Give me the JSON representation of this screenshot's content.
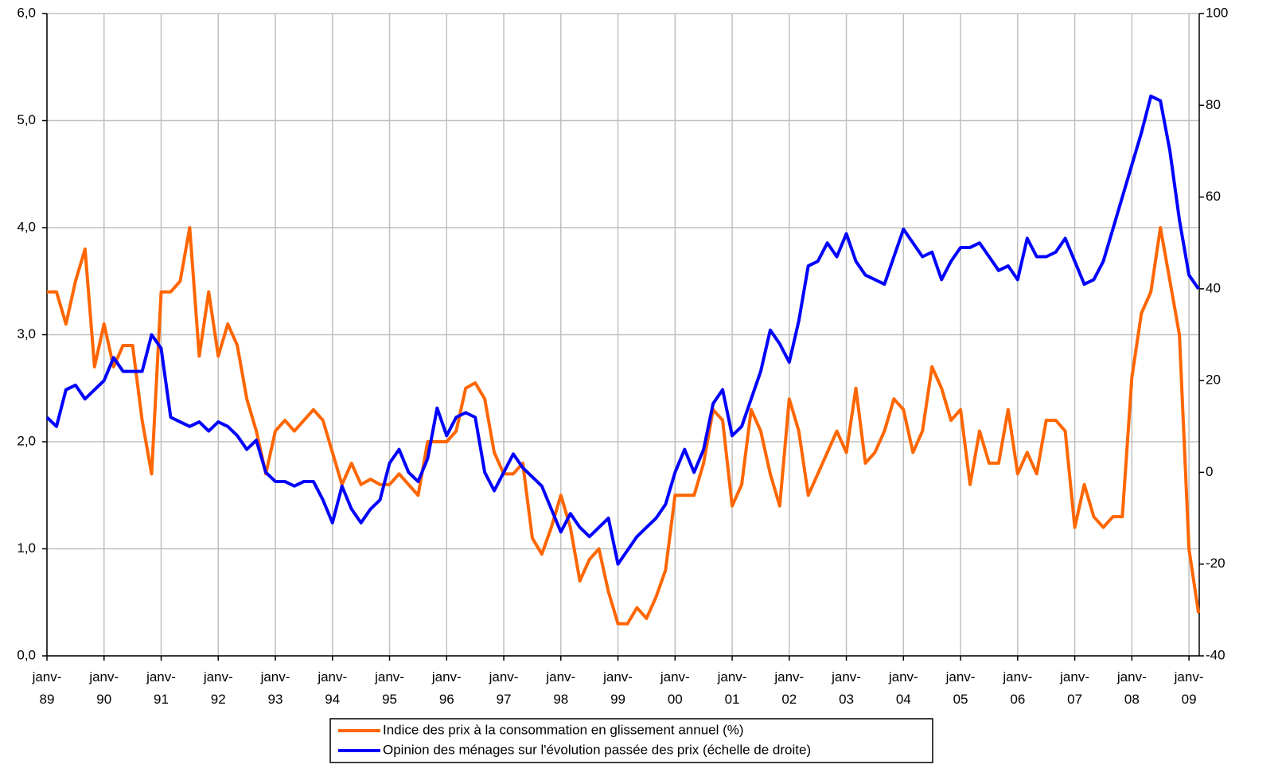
{
  "chart_data": {
    "type": "line",
    "x": [
      1989,
      1989.167,
      1989.333,
      1989.5,
      1989.667,
      1989.833,
      1990,
      1990.167,
      1990.333,
      1990.5,
      1990.667,
      1990.833,
      1991,
      1991.167,
      1991.333,
      1991.5,
      1991.667,
      1991.833,
      1992,
      1992.167,
      1992.333,
      1992.5,
      1992.667,
      1992.833,
      1993,
      1993.167,
      1993.333,
      1993.5,
      1993.667,
      1993.833,
      1994,
      1994.167,
      1994.333,
      1994.5,
      1994.667,
      1994.833,
      1995,
      1995.167,
      1995.333,
      1995.5,
      1995.667,
      1995.833,
      1996,
      1996.167,
      1996.333,
      1996.5,
      1996.667,
      1996.833,
      1997,
      1997.167,
      1997.333,
      1997.5,
      1997.667,
      1997.833,
      1998,
      1998.167,
      1998.333,
      1998.5,
      1998.667,
      1998.833,
      1999,
      1999.167,
      1999.333,
      1999.5,
      1999.667,
      1999.833,
      2000,
      2000.167,
      2000.333,
      2000.5,
      2000.667,
      2000.833,
      2001,
      2001.167,
      2001.333,
      2001.5,
      2001.667,
      2001.833,
      2002,
      2002.167,
      2002.333,
      2002.5,
      2002.667,
      2002.833,
      2003,
      2003.167,
      2003.333,
      2003.5,
      2003.667,
      2003.833,
      2004,
      2004.167,
      2004.333,
      2004.5,
      2004.667,
      2004.833,
      2005,
      2005.167,
      2005.333,
      2005.5,
      2005.667,
      2005.833,
      2006,
      2006.167,
      2006.333,
      2006.5,
      2006.667,
      2006.833,
      2007,
      2007.167,
      2007.333,
      2007.5,
      2007.667,
      2007.833,
      2008,
      2008.167,
      2008.333,
      2008.5,
      2008.667,
      2008.833,
      2009,
      2009.167
    ],
    "series": [
      {
        "name": "Indice des prix à la consommation en glissement annuel (%)",
        "color": "#ff6600",
        "axis": "y",
        "values": [
          3.4,
          3.4,
          3.1,
          3.5,
          3.8,
          2.7,
          3.1,
          2.7,
          2.9,
          2.9,
          2.2,
          1.7,
          3.4,
          3.4,
          3.5,
          4.0,
          2.8,
          3.4,
          2.8,
          3.1,
          2.9,
          2.4,
          2.1,
          1.7,
          2.1,
          2.2,
          2.1,
          2.2,
          2.3,
          2.2,
          1.9,
          1.6,
          1.8,
          1.6,
          1.65,
          1.6,
          1.6,
          1.7,
          1.6,
          1.5,
          2.0,
          2.0,
          2.0,
          2.1,
          2.5,
          2.55,
          2.4,
          1.9,
          1.7,
          1.7,
          1.8,
          1.1,
          0.95,
          1.2,
          1.5,
          1.2,
          0.7,
          0.9,
          1.0,
          0.6,
          0.3,
          0.3,
          0.45,
          0.35,
          0.55,
          0.8,
          1.5,
          1.5,
          1.5,
          1.8,
          2.3,
          2.2,
          1.4,
          1.6,
          2.3,
          2.1,
          1.7,
          1.4,
          2.4,
          2.1,
          1.5,
          1.7,
          1.9,
          2.1,
          1.9,
          2.5,
          1.8,
          1.9,
          2.1,
          2.4,
          2.3,
          1.9,
          2.1,
          2.7,
          2.5,
          2.2,
          2.3,
          1.6,
          2.1,
          1.8,
          1.8,
          2.3,
          1.7,
          1.9,
          1.7,
          2.2,
          2.2,
          2.1,
          1.2,
          1.6,
          1.3,
          1.2,
          1.3,
          1.3,
          2.6,
          3.2,
          3.4,
          4.0,
          3.5,
          3.0,
          1.0,
          0.4
        ]
      },
      {
        "name": "Opinion des ménages sur l'évolution passée des prix (échelle de droite)",
        "color": "#0000ff",
        "axis": "y2",
        "values": [
          12,
          10,
          18,
          19,
          16,
          18,
          20,
          25,
          22,
          22,
          22,
          30,
          27,
          12,
          11,
          10,
          11,
          9,
          11,
          10,
          8,
          5,
          7,
          0,
          -2,
          -2,
          -3,
          -2,
          -2,
          -6,
          -11,
          -3,
          -8,
          -11,
          -8,
          -6,
          2,
          5,
          0,
          -2,
          3,
          14,
          8,
          12,
          13,
          12,
          0,
          -4,
          0,
          4,
          1,
          -1,
          -3,
          -8,
          -13,
          -9,
          -12,
          -14,
          -12,
          -10,
          -20,
          -17,
          -14,
          -12,
          -10,
          -7,
          0,
          5,
          0,
          5,
          15,
          18,
          8,
          10,
          16,
          22,
          31,
          28,
          24,
          33,
          45,
          46,
          50,
          47,
          52,
          46,
          43,
          42,
          41,
          47,
          53,
          50,
          47,
          48,
          42,
          46,
          49,
          49,
          50,
          47,
          44,
          45,
          42,
          51,
          47,
          47,
          48,
          51,
          46,
          41,
          42,
          46,
          53,
          60,
          67,
          74,
          82,
          81,
          70,
          55,
          43,
          40
        ]
      }
    ],
    "xlim": [
      1989,
      2009.18
    ],
    "xticks": [
      {
        "value": 1989,
        "label": "janv-89"
      },
      {
        "value": 1990,
        "label": "janv-90"
      },
      {
        "value": 1991,
        "label": "janv-91"
      },
      {
        "value": 1992,
        "label": "janv-92"
      },
      {
        "value": 1993,
        "label": "janv-93"
      },
      {
        "value": 1994,
        "label": "janv-94"
      },
      {
        "value": 1995,
        "label": "janv-95"
      },
      {
        "value": 1996,
        "label": "janv-96"
      },
      {
        "value": 1997,
        "label": "janv-97"
      },
      {
        "value": 1998,
        "label": "janv-98"
      },
      {
        "value": 1999,
        "label": "janv-99"
      },
      {
        "value": 2000,
        "label": "janv-00"
      },
      {
        "value": 2001,
        "label": "janv-01"
      },
      {
        "value": 2002,
        "label": "janv-02"
      },
      {
        "value": 2003,
        "label": "janv-03"
      },
      {
        "value": 2004,
        "label": "janv-04"
      },
      {
        "value": 2005,
        "label": "janv-05"
      },
      {
        "value": 2006,
        "label": "janv-06"
      },
      {
        "value": 2007,
        "label": "janv-07"
      },
      {
        "value": 2008,
        "label": "janv-08"
      },
      {
        "value": 2009,
        "label": "janv-09"
      }
    ],
    "ylim": [
      0,
      6
    ],
    "yticks": [
      {
        "value": 0,
        "label": "0,0"
      },
      {
        "value": 1,
        "label": "1,0"
      },
      {
        "value": 2,
        "label": "2,0"
      },
      {
        "value": 3,
        "label": "3,0"
      },
      {
        "value": 4,
        "label": "4,0"
      },
      {
        "value": 5,
        "label": "5,0"
      },
      {
        "value": 6,
        "label": "6,0"
      }
    ],
    "y2lim": [
      -40,
      100
    ],
    "y2ticks": [
      -40,
      -20,
      0,
      20,
      40,
      60,
      80,
      100
    ],
    "grid": true,
    "legend": "bottom"
  }
}
